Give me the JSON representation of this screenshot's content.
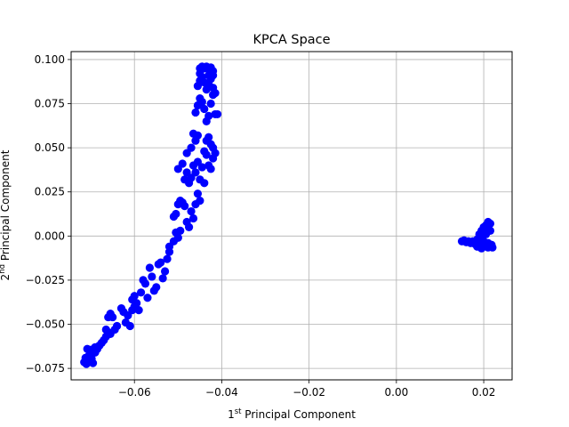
{
  "chart_data": {
    "type": "scatter",
    "title": "KPCA Space",
    "xlabel": {
      "prefix": "1",
      "sup": "st",
      "suffix": " Principal Component"
    },
    "ylabel": {
      "prefix": "2",
      "sup": "nd",
      "suffix": " Principal Component"
    },
    "xlim": [
      -0.0745,
      0.0265
    ],
    "ylim": [
      -0.0815,
      0.1045
    ],
    "xticks": [
      -0.06,
      -0.04,
      -0.02,
      0.0,
      0.02
    ],
    "xtick_labels": [
      "−0.06",
      "−0.04",
      "−0.02",
      "0.00",
      "0.02"
    ],
    "yticks": [
      -0.075,
      -0.05,
      -0.025,
      0.0,
      0.025,
      0.05,
      0.075,
      0.1
    ],
    "ytick_labels": [
      "−0.075",
      "−0.050",
      "−0.025",
      "0.000",
      "0.025",
      "0.050",
      "0.075",
      "0.100"
    ],
    "grid": true,
    "marker_color": "#0000ff",
    "series": [
      {
        "values": [
          [
            -0.0715,
            -0.0715
          ],
          [
            -0.071,
            -0.0725
          ],
          [
            -0.0705,
            -0.0715
          ],
          [
            -0.07,
            -0.0705
          ],
          [
            -0.0695,
            -0.072
          ],
          [
            -0.0712,
            -0.069
          ],
          [
            -0.0705,
            -0.068
          ],
          [
            -0.0698,
            -0.0695
          ],
          [
            -0.0708,
            -0.064
          ],
          [
            -0.07,
            -0.0645
          ],
          [
            -0.069,
            -0.066
          ],
          [
            -0.0685,
            -0.064
          ],
          [
            -0.068,
            -0.062
          ],
          [
            -0.0675,
            -0.0605
          ],
          [
            -0.069,
            -0.063
          ],
          [
            -0.067,
            -0.059
          ],
          [
            -0.0665,
            -0.057
          ],
          [
            -0.066,
            -0.0545
          ],
          [
            -0.0655,
            -0.0555
          ],
          [
            -0.0665,
            -0.053
          ],
          [
            -0.066,
            -0.046
          ],
          [
            -0.0655,
            -0.044
          ],
          [
            -0.065,
            -0.046
          ],
          [
            -0.0645,
            -0.053
          ],
          [
            -0.064,
            -0.051
          ],
          [
            -0.063,
            -0.041
          ],
          [
            -0.0625,
            -0.043
          ],
          [
            -0.062,
            -0.049
          ],
          [
            -0.0615,
            -0.045
          ],
          [
            -0.061,
            -0.051
          ],
          [
            -0.0605,
            -0.042
          ],
          [
            -0.06,
            -0.04
          ],
          [
            -0.0605,
            -0.036
          ],
          [
            -0.06,
            -0.034
          ],
          [
            -0.0595,
            -0.038
          ],
          [
            -0.059,
            -0.042
          ],
          [
            -0.0585,
            -0.032
          ],
          [
            -0.058,
            -0.025
          ],
          [
            -0.0575,
            -0.027
          ],
          [
            -0.057,
            -0.035
          ],
          [
            -0.0565,
            -0.018
          ],
          [
            -0.056,
            -0.023
          ],
          [
            -0.0555,
            -0.031
          ],
          [
            -0.055,
            -0.029
          ],
          [
            -0.0545,
            -0.016
          ],
          [
            -0.054,
            -0.015
          ],
          [
            -0.0535,
            -0.024
          ],
          [
            -0.053,
            -0.02
          ],
          [
            -0.0525,
            -0.013
          ],
          [
            -0.052,
            -0.009
          ],
          [
            -0.052,
            -0.006
          ],
          [
            -0.051,
            -0.003
          ],
          [
            -0.0505,
            0.002
          ],
          [
            -0.05,
            -0.001
          ],
          [
            -0.0495,
            0.003
          ],
          [
            -0.051,
            0.011
          ],
          [
            -0.0505,
            0.0125
          ],
          [
            -0.05,
            0.018
          ],
          [
            -0.0495,
            0.02
          ],
          [
            -0.049,
            0.019
          ],
          [
            -0.0485,
            0.017
          ],
          [
            -0.048,
            0.008
          ],
          [
            -0.0475,
            0.005
          ],
          [
            -0.047,
            0.014
          ],
          [
            -0.0465,
            0.01
          ],
          [
            -0.046,
            0.018
          ],
          [
            -0.0455,
            0.024
          ],
          [
            -0.045,
            0.02
          ],
          [
            -0.05,
            0.038
          ],
          [
            -0.049,
            0.041
          ],
          [
            -0.0485,
            0.032
          ],
          [
            -0.048,
            0.036
          ],
          [
            -0.0475,
            0.03
          ],
          [
            -0.047,
            0.033
          ],
          [
            -0.0465,
            0.04
          ],
          [
            -0.046,
            0.036
          ],
          [
            -0.0455,
            0.042
          ],
          [
            -0.045,
            0.032
          ],
          [
            -0.0445,
            0.039
          ],
          [
            -0.044,
            0.03
          ],
          [
            -0.047,
            0.05
          ],
          [
            -0.0465,
            0.058
          ],
          [
            -0.046,
            0.054
          ],
          [
            -0.0455,
            0.057
          ],
          [
            -0.048,
            0.047
          ],
          [
            -0.044,
            0.048
          ],
          [
            -0.0435,
            0.046
          ],
          [
            -0.043,
            0.04
          ],
          [
            -0.0425,
            0.038
          ],
          [
            -0.042,
            0.044
          ],
          [
            -0.043,
            0.056
          ],
          [
            -0.0425,
            0.052
          ],
          [
            -0.042,
            0.05
          ],
          [
            -0.0415,
            0.047
          ],
          [
            -0.0435,
            0.054
          ],
          [
            -0.046,
            0.07
          ],
          [
            -0.0455,
            0.074
          ],
          [
            -0.045,
            0.078
          ],
          [
            -0.0445,
            0.076
          ],
          [
            -0.044,
            0.072
          ],
          [
            -0.0435,
            0.065
          ],
          [
            -0.043,
            0.068
          ],
          [
            -0.0425,
            0.075
          ],
          [
            -0.042,
            0.08
          ],
          [
            -0.0415,
            0.069
          ],
          [
            -0.041,
            0.069
          ],
          [
            -0.0455,
            0.085
          ],
          [
            -0.045,
            0.088
          ],
          [
            -0.0445,
            0.09
          ],
          [
            -0.044,
            0.087
          ],
          [
            -0.0435,
            0.083
          ],
          [
            -0.043,
            0.086
          ],
          [
            -0.0425,
            0.089
          ],
          [
            -0.042,
            0.084
          ],
          [
            -0.0415,
            0.081
          ],
          [
            -0.045,
            0.095
          ],
          [
            -0.0445,
            0.096
          ],
          [
            -0.044,
            0.095
          ],
          [
            -0.0435,
            0.096
          ],
          [
            -0.043,
            0.0945
          ],
          [
            -0.0425,
            0.0955
          ],
          [
            -0.042,
            0.0935
          ],
          [
            -0.045,
            0.092
          ],
          [
            -0.043,
            0.091
          ],
          [
            -0.042,
            0.091
          ],
          [
            0.015,
            -0.003
          ],
          [
            0.0155,
            -0.0025
          ],
          [
            0.016,
            -0.0035
          ],
          [
            0.0165,
            -0.003
          ],
          [
            0.017,
            -0.004
          ],
          [
            0.0175,
            -0.003
          ],
          [
            0.018,
            -0.0045
          ],
          [
            0.0185,
            -0.002
          ],
          [
            0.019,
            -0.0055
          ],
          [
            0.0195,
            -0.001
          ],
          [
            0.02,
            -0.006
          ],
          [
            0.0205,
            0.001
          ],
          [
            0.021,
            -0.0065
          ],
          [
            0.0215,
            0.003
          ],
          [
            0.019,
            0.001
          ],
          [
            0.0195,
            0.003
          ],
          [
            0.02,
            0.005
          ],
          [
            0.0205,
            0.006
          ],
          [
            0.021,
            0.008
          ],
          [
            0.0215,
            0.007
          ],
          [
            0.021,
            -0.004
          ],
          [
            0.0215,
            -0.006
          ],
          [
            0.022,
            -0.0065
          ],
          [
            0.0218,
            -0.005
          ],
          [
            0.02,
            -0.003
          ],
          [
            0.0205,
            -0.0045
          ],
          [
            0.0195,
            -0.007
          ],
          [
            0.0185,
            -0.006
          ],
          [
            0.02,
            0.002
          ],
          [
            0.021,
            0.004
          ]
        ]
      }
    ]
  }
}
